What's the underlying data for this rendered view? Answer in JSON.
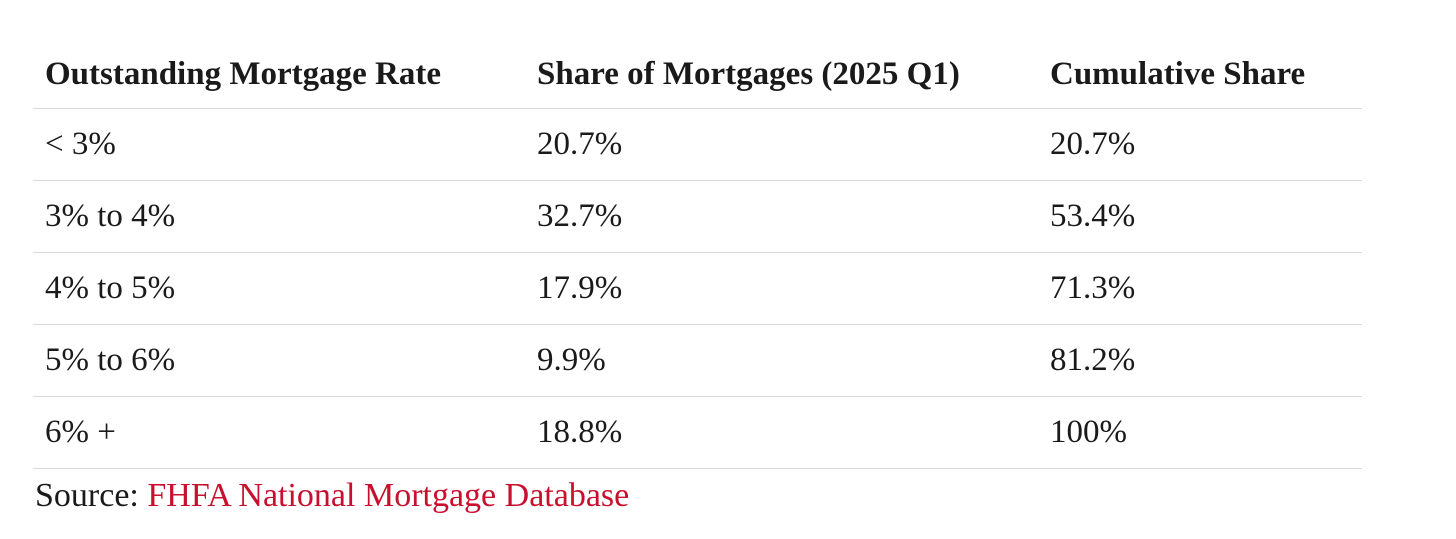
{
  "table": {
    "headers": [
      "Outstanding Mortgage Rate",
      "Share of Mortgages (2025 Q1)",
      "Cumulative Share"
    ],
    "rows": [
      [
        "< 3%",
        "20.7%",
        "20.7%"
      ],
      [
        "3% to 4%",
        "32.7%",
        "53.4%"
      ],
      [
        "4% to 5%",
        "17.9%",
        "71.3%"
      ],
      [
        "5% to 6%",
        "9.9%",
        "81.2%"
      ],
      [
        "6% +",
        "18.8%",
        "100%"
      ]
    ]
  },
  "source": {
    "label": "Source:",
    "link": "FHFA National Mortgage Database"
  }
}
